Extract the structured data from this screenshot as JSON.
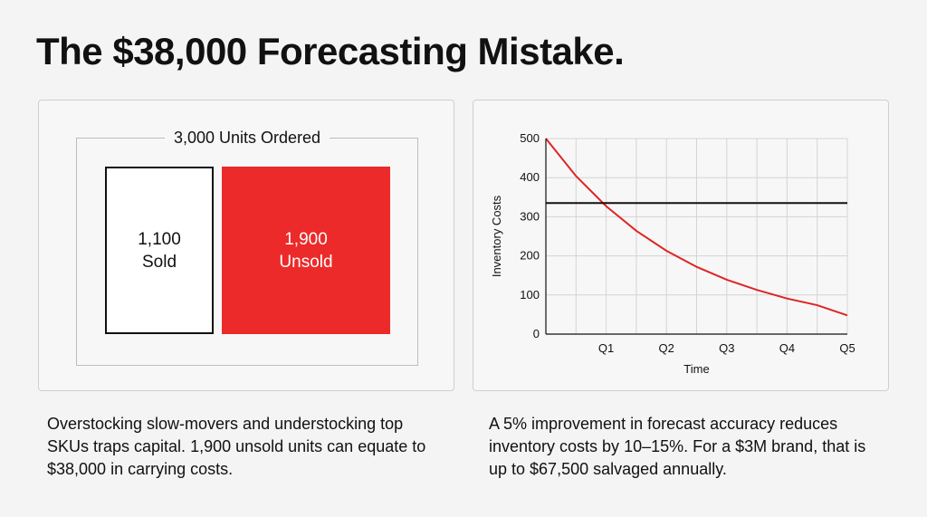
{
  "title": "The $38,000 Forecasting Mistake.",
  "left_panel": {
    "total_label": "3,000 Units Ordered",
    "sold": {
      "value": "1,100",
      "label": "Sold"
    },
    "unsold": {
      "value": "1,900",
      "label": "Unsold",
      "color": "#ec2a2a"
    },
    "description": "Overstocking slow-movers and understocking top SKUs traps capital. 1,900 unsold units can equate to $38,000 in carrying costs."
  },
  "right_panel": {
    "description": "A 5% improvement in forecast accuracy reduces inventory costs by 10–15%. For a $3M brand, that is up to $67,500 salvaged annually."
  },
  "chart_data": {
    "type": "line",
    "xlabel": "Time",
    "ylabel": "Inventory Costs",
    "x_ticks": [
      {
        "x": 1,
        "label": "Q1"
      },
      {
        "x": 2,
        "label": "Q2"
      },
      {
        "x": 3,
        "label": "Q3"
      },
      {
        "x": 4,
        "label": "Q4"
      },
      {
        "x": 5,
        "label": "Q5"
      }
    ],
    "y_ticks": [
      0,
      100,
      200,
      300,
      400,
      500
    ],
    "xlim": [
      0,
      5
    ],
    "ylim": [
      0,
      500
    ],
    "grid": true,
    "series": [
      {
        "color": "#e02424",
        "x": [
          0,
          0.5,
          1,
          1.5,
          2,
          2.5,
          3,
          3.5,
          4,
          4.5,
          5
        ],
        "y": [
          500,
          404,
          327,
          264,
          213,
          172,
          139,
          113,
          91,
          74,
          48
        ]
      },
      {
        "color": "#111111",
        "x": [
          0,
          5
        ],
        "y": [
          335,
          335
        ]
      }
    ]
  }
}
